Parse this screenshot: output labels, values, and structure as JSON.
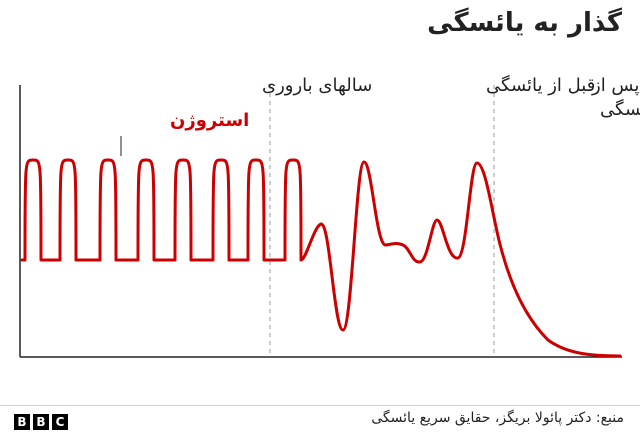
{
  "title": "گذار به یائسگی",
  "chart_data": {
    "type": "line",
    "title": "گذار به یائسگی",
    "xlabel": "",
    "ylabel": "",
    "phases": [
      {
        "label": "سالهای باروری"
      },
      {
        "label": "قبل از یائسگی"
      },
      {
        "label_lines": [
          "پس از",
          "یائسگی"
        ]
      }
    ],
    "series": [
      {
        "name": "استروژن",
        "color": "#cc0000"
      }
    ],
    "grid": false
  },
  "source": "منبع: دکتر پائولا بریگز، حقایق سریع یائسگی",
  "brand": [
    "B",
    "B",
    "C"
  ]
}
